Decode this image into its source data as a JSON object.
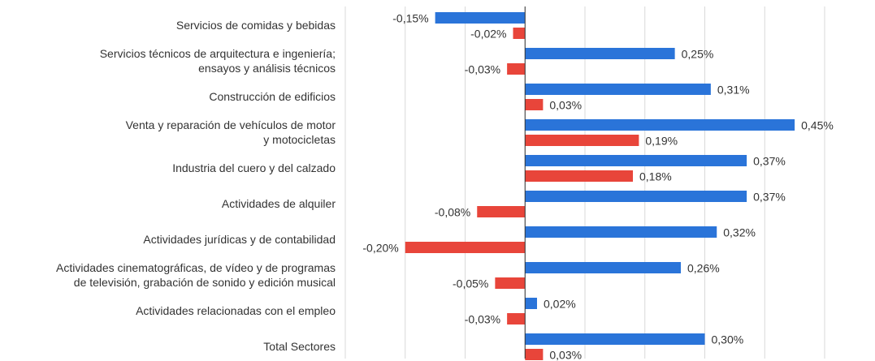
{
  "chart_data": {
    "type": "hbar",
    "categories": [
      "Servicios de comidas y bebidas",
      "Servicios técnicos de arquitectura e ingeniería;\nensayos y análisis técnicos",
      "Construcción de edificios",
      "Venta y reparación de vehículos de motor\ny motocicletas",
      "Industria del cuero y del calzado",
      "Actividades de alquiler",
      "Actividades jurídicas y de contabilidad",
      "Actividades cinematográficas, de vídeo y de programas\nde televisión, grabación de sonido y edición musical",
      "Actividades relacionadas con el empleo",
      "Total Sectores"
    ],
    "series": [
      {
        "color": "#2a74d9",
        "values": [
          -0.15,
          0.25,
          0.31,
          0.45,
          0.37,
          0.37,
          0.32,
          0.26,
          0.02,
          0.3
        ],
        "value_labels": [
          "-0,15%",
          "0,25%",
          "0,31%",
          "0,45%",
          "0,37%",
          "0,37%",
          "0,32%",
          "0,26%",
          "0,02%",
          "0,30%"
        ]
      },
      {
        "color": "#e8453a",
        "values": [
          -0.02,
          -0.03,
          0.03,
          0.19,
          0.18,
          -0.08,
          -0.2,
          -0.05,
          -0.03,
          0.03
        ],
        "value_labels": [
          "-0,02%",
          "-0,03%",
          "0,03%",
          "0,19%",
          "0,18%",
          "-0,08%",
          "-0,20%",
          "-0,05%",
          "-0,03%",
          "0,03%"
        ]
      }
    ],
    "xlim": [
      -0.3,
      0.5
    ],
    "xticks": [
      -0.3,
      -0.2,
      -0.1,
      0,
      0.1,
      0.2,
      0.3,
      0.4,
      0.5
    ],
    "grid": true
  }
}
